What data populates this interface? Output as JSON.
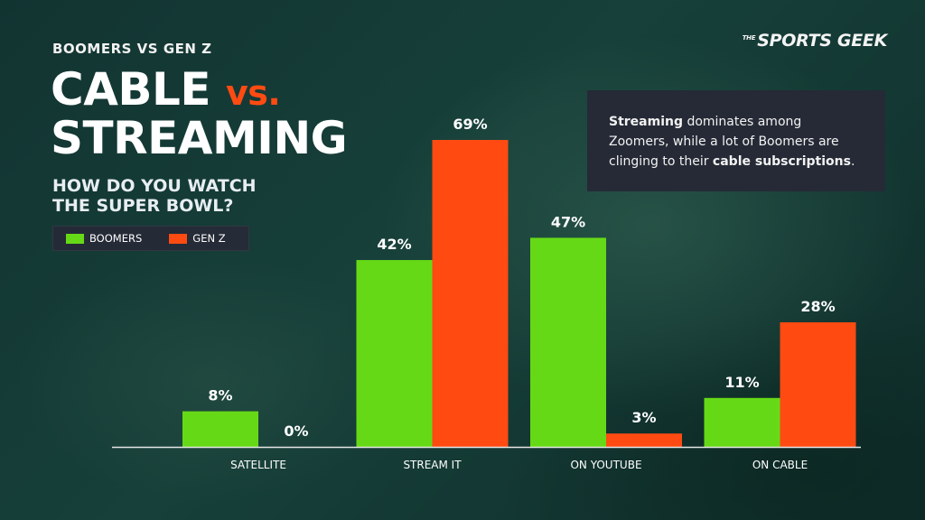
{
  "header": {
    "subtitle": "BOOMERS VS GEN Z",
    "title_line1": "CABLE",
    "title_vs": "vs.",
    "title_line2": "STREAMING",
    "question": "HOW DO YOU WATCH THE SUPER BOWL?"
  },
  "brand": {
    "the": "THE",
    "name": "SPORTS GEEK"
  },
  "callout": {
    "strong1": "Streaming",
    "text1": " dominates among Zoomers, while a lot of Boomers are clinging to their ",
    "strong2": "cable subscriptions",
    "text2": "."
  },
  "legend": {
    "items": [
      "BOOMERS",
      "GEN Z"
    ]
  },
  "colors": {
    "boomers": "#66d917",
    "genz": "#ff4b12",
    "axis": "#e6e6e6"
  },
  "chart_data": {
    "type": "bar",
    "categories": [
      "SATELLITE",
      "STREAM IT",
      "ON YOUTUBE",
      "ON CABLE"
    ],
    "series": [
      {
        "name": "BOOMERS",
        "values": [
          8,
          42,
          47,
          11
        ]
      },
      {
        "name": "GEN Z",
        "values": [
          0,
          69,
          3,
          28
        ]
      }
    ],
    "value_suffix": "%",
    "ylim": [
      0,
      69
    ],
    "grid": false,
    "legend_position": "top-left"
  }
}
